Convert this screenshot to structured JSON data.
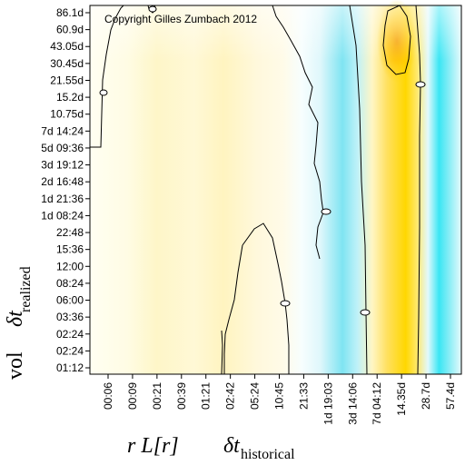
{
  "chart_data": {
    "type": "heatmap",
    "copyright": "Copyright Gilles Zumbach 2012",
    "xlabel": {
      "quantity": "r L[r]",
      "symbol": "δt",
      "subscript": "historical"
    },
    "ylabel": {
      "quantity": "vol",
      "symbol": "δt",
      "subscript": "realized"
    },
    "x_ticks": [
      "00:06",
      "00:09",
      "00:21",
      "00:39",
      "01:21",
      "02:42",
      "05:24",
      "10:45",
      "21:33",
      "1d 19:03",
      "3d 14:06",
      "7d 04:12",
      "14.35d",
      "28.7d",
      "57.4d"
    ],
    "y_ticks": [
      "86.1d",
      "60.9d",
      "43.05d",
      "30.45d",
      "21.55d",
      "15.2d",
      "10.75d",
      "7d 14:24",
      "5d 09:36",
      "3d 19:12",
      "2d 16:48",
      "1d 21:36",
      "1d 08:24",
      "22:48",
      "15:36",
      "12:00",
      "08:24",
      "06:00",
      "03:36",
      "02:24",
      "02:24",
      "01:12"
    ],
    "color_scale": {
      "negative": "#00e0f0",
      "zero": "#ffffff",
      "positive": "#ffd800"
    },
    "contour_levels": [
      0
    ],
    "grid": false,
    "legend": "none"
  }
}
